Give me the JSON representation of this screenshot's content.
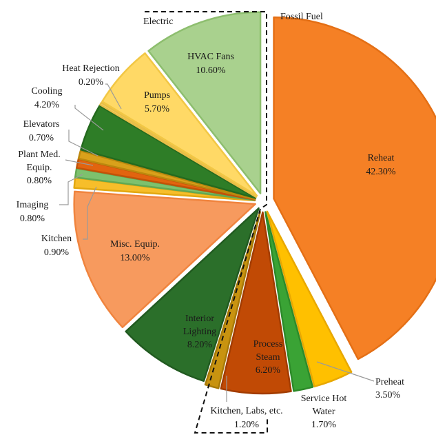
{
  "chart_data": {
    "type": "pie",
    "groups": [
      {
        "name": "Electric",
        "name_label": "Electric"
      },
      {
        "name": "Fossil Fuel",
        "name_label": "Fossil Fuel"
      }
    ],
    "slices": [
      {
        "group": "Fossil Fuel",
        "name": "Reheat",
        "value": 42.3,
        "value_label": "42.30%",
        "color": "#F58025",
        "edge": "#E46F15"
      },
      {
        "group": "Fossil Fuel",
        "name": "Preheat",
        "value": 3.5,
        "value_label": "3.50%",
        "color": "#FFC000",
        "edge": "#E8A800"
      },
      {
        "group": "Fossil Fuel",
        "name": "Service Hot Water",
        "value": 1.7,
        "value_label": "1.70%",
        "color": "#3AA335",
        "edge": "#2C8A28"
      },
      {
        "group": "Fossil Fuel",
        "name": "Process Steam",
        "value": 6.2,
        "value_label": "6.20%",
        "color": "#C14A05",
        "edge": "#A23C00"
      },
      {
        "group": "Fossil Fuel",
        "name": "Kitchen, Labs, etc.",
        "value": 1.2,
        "value_label": "1.20%",
        "color": "#C89310",
        "edge": "#A87A08"
      },
      {
        "group": "Electric",
        "name": "Interior Lighting",
        "value": 8.2,
        "value_label": "8.20%",
        "color": "#2B6F2A",
        "edge": "#215A20"
      },
      {
        "group": "Electric",
        "name": "Misc. Equip.",
        "value": 13.0,
        "value_label": "13.00%",
        "color": "#F79A5E",
        "edge": "#F0843E"
      },
      {
        "group": "Electric",
        "name": "Kitchen",
        "value": 0.9,
        "value_label": "0.90%",
        "color": "#F7BE2A",
        "edge": "#E2A810"
      },
      {
        "group": "Electric",
        "name": "Imaging",
        "value": 0.8,
        "value_label": "0.80%",
        "color": "#7DC16E",
        "edge": "#62A853"
      },
      {
        "group": "Electric",
        "name": "Plant Med. Equip.",
        "value": 0.8,
        "value_label": "0.80%",
        "color": "#E2640F",
        "edge": "#C25208"
      },
      {
        "group": "Electric",
        "name": "Elevators",
        "value": 0.7,
        "value_label": "0.70%",
        "color": "#D9A11B",
        "edge": "#BC880E"
      },
      {
        "group": "Electric",
        "name": "Cooling",
        "value": 4.2,
        "value_label": "4.20%",
        "color": "#2E7D27",
        "edge": "#246A1E"
      },
      {
        "group": "Electric",
        "name": "Heat Rejection",
        "value": 0.2,
        "value_label": "0.20%",
        "color": "#F9D36B",
        "edge": "#E8BE48"
      },
      {
        "group": "Electric",
        "name": "Pumps",
        "value": 5.7,
        "value_label": "5.70%",
        "color": "#FFD966",
        "edge": "#F2C744"
      },
      {
        "group": "Electric",
        "name": "HVAC Fans",
        "value": 10.6,
        "value_label": "10.60%",
        "color": "#A9D18E",
        "edge": "#8DBE6E"
      }
    ],
    "labels": {
      "Reheat": [
        "Reheat",
        "42.30%"
      ],
      "Preheat": [
        "Preheat",
        "3.50%"
      ],
      "Service Hot Water": [
        "Service Hot",
        "Water",
        "1.70%"
      ],
      "Process Steam": [
        "Process",
        "Steam",
        "6.20%"
      ],
      "Kitchen, Labs, etc.": [
        "Kitchen, Labs, etc.",
        "1.20%"
      ],
      "Interior Lighting": [
        "Interior",
        "Lighting",
        "8.20%"
      ],
      "Misc. Equip.": [
        "Misc. Equip.",
        "13.00%"
      ],
      "Kitchen": [
        "Kitchen",
        "0.90%"
      ],
      "Imaging": [
        "Imaging",
        "0.80%"
      ],
      "Plant Med. Equip.": [
        "Plant Med.",
        "Equip.",
        "0.80%"
      ],
      "Elevators": [
        "Elevators",
        "0.70%"
      ],
      "Cooling": [
        "Cooling",
        "4.20%"
      ],
      "Heat Rejection": [
        "Heat Rejection",
        "0.20%"
      ],
      "Pumps": [
        "Pumps",
        "5.70%"
      ],
      "HVAC Fans": [
        "HVAC Fans",
        "10.60%"
      ]
    }
  }
}
